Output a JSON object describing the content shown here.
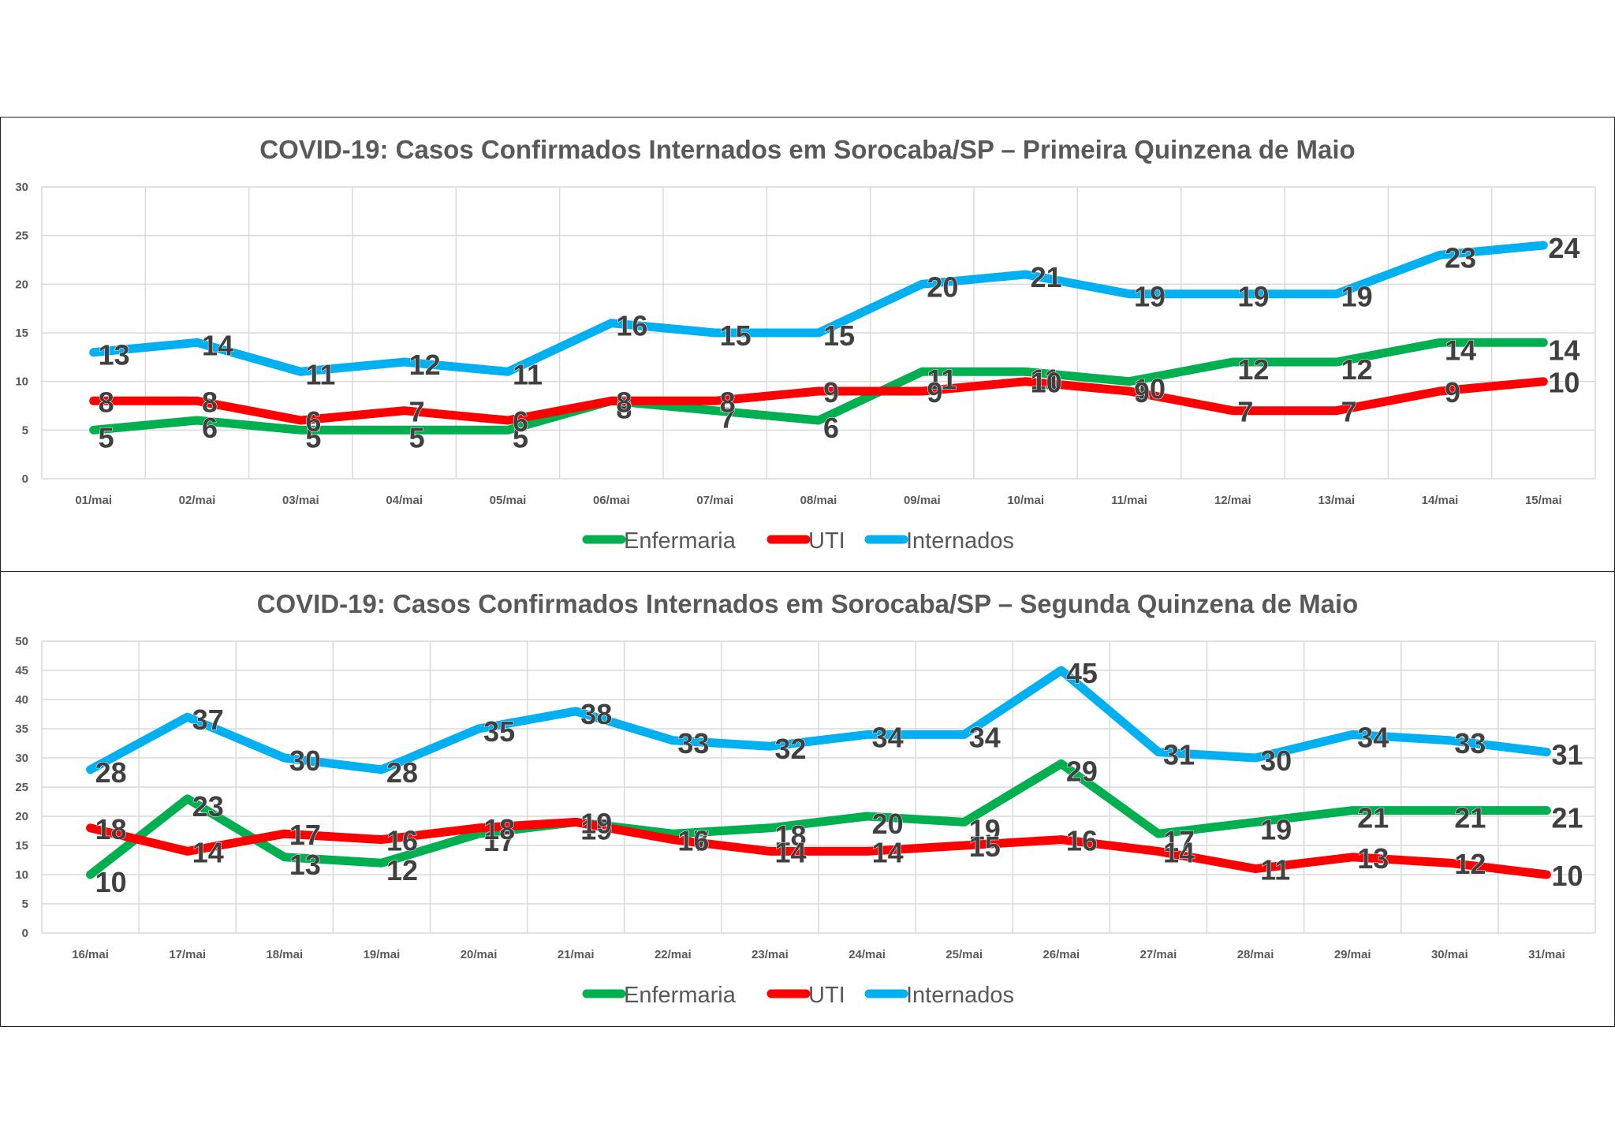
{
  "colors": {
    "Enfermaria": "#00b050",
    "UTI": "#ff0000",
    "Internados": "#00b0f0"
  },
  "legend_labels": [
    "Enfermaria",
    "UTI",
    "Internados"
  ],
  "chart_data": [
    {
      "type": "line",
      "title": "COVID-19: Casos Confirmados Internados em Sorocaba/SP – Primeira Quinzena de Maio",
      "categories": [
        "01/mai",
        "02/mai",
        "03/mai",
        "04/mai",
        "05/mai",
        "06/mai",
        "07/mai",
        "08/mai",
        "09/mai",
        "10/mai",
        "11/mai",
        "12/mai",
        "13/mai",
        "14/mai",
        "15/mai"
      ],
      "ylim": [
        0,
        30
      ],
      "yticks": [
        0,
        5,
        10,
        15,
        20,
        25,
        30
      ],
      "grid": true,
      "legend": "bottom",
      "series": [
        {
          "name": "Enfermaria",
          "values": [
            5,
            6,
            5,
            5,
            5,
            8,
            7,
            6,
            11,
            11,
            10,
            12,
            12,
            14,
            14
          ]
        },
        {
          "name": "UTI",
          "values": [
            8,
            8,
            6,
            7,
            6,
            8,
            8,
            9,
            9,
            10,
            9,
            7,
            7,
            9,
            10
          ]
        },
        {
          "name": "Internados",
          "values": [
            13,
            14,
            11,
            12,
            11,
            16,
            15,
            15,
            20,
            21,
            19,
            19,
            19,
            23,
            24
          ]
        }
      ]
    },
    {
      "type": "line",
      "title": "COVID-19: Casos Confirmados Internados em Sorocaba/SP – Segunda Quinzena de Maio",
      "categories": [
        "16/mai",
        "17/mai",
        "18/mai",
        "19/mai",
        "20/mai",
        "21/mai",
        "22/mai",
        "23/mai",
        "24/mai",
        "25/mai",
        "26/mai",
        "27/mai",
        "28/mai",
        "29/mai",
        "30/mai",
        "31/mai"
      ],
      "ylim": [
        0,
        50
      ],
      "yticks": [
        0,
        5,
        10,
        15,
        20,
        25,
        30,
        35,
        40,
        45,
        50
      ],
      "grid": true,
      "legend": "bottom",
      "series": [
        {
          "name": "Enfermaria",
          "values": [
            10,
            23,
            13,
            12,
            17,
            19,
            17,
            18,
            20,
            19,
            29,
            17,
            19,
            21,
            21,
            21
          ]
        },
        {
          "name": "UTI",
          "values": [
            18,
            14,
            17,
            16,
            18,
            19,
            16,
            14,
            14,
            15,
            16,
            14,
            11,
            13,
            12,
            10
          ]
        },
        {
          "name": "Internados",
          "values": [
            28,
            37,
            30,
            28,
            35,
            38,
            33,
            32,
            34,
            34,
            45,
            31,
            30,
            34,
            33,
            31
          ]
        }
      ]
    }
  ]
}
